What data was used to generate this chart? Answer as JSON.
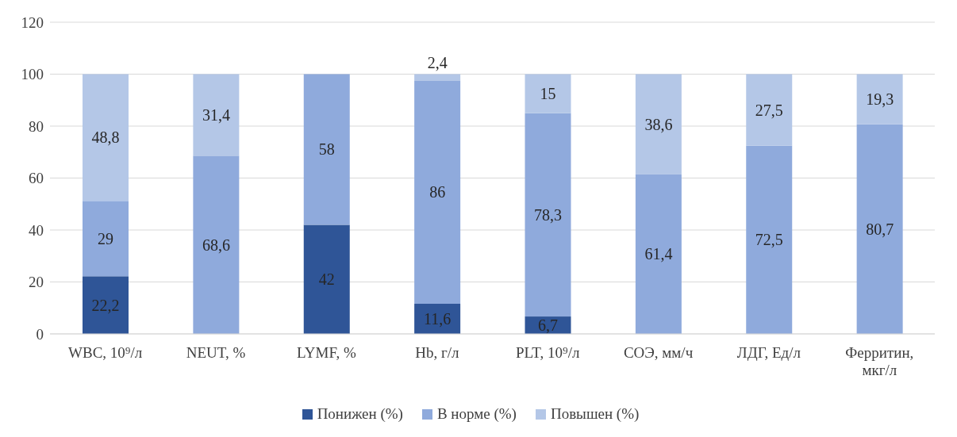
{
  "chart_data": {
    "type": "bar",
    "stacked": true,
    "categories": [
      "WBC, 10⁹/л",
      "NEUT, %",
      "LYMF, %",
      "Hb, г/л",
      "PLT, 10⁹/л",
      "СОЭ, мм/ч",
      "ЛДГ, Ед/л",
      "Ферритин, мкг/л"
    ],
    "series": [
      {
        "name": "Понижен (%)",
        "color": "#2f5597",
        "values": [
          22.2,
          null,
          42,
          11.6,
          6.7,
          null,
          null,
          null
        ],
        "value_labels": [
          "22,2",
          null,
          "42",
          "11,6",
          "6,7",
          null,
          null,
          null
        ]
      },
      {
        "name": "В норме (%)",
        "color": "#8faadc",
        "values": [
          29,
          68.6,
          58,
          86,
          78.3,
          61.4,
          72.5,
          80.7
        ],
        "value_labels": [
          "29",
          "68,6",
          "58",
          "86",
          "78,3",
          "61,4",
          "72,5",
          "80,7"
        ]
      },
      {
        "name": "Повышен (%)",
        "color": "#b4c7e7",
        "values": [
          48.8,
          31.4,
          null,
          2.4,
          15,
          38.6,
          27.5,
          19.3
        ],
        "value_labels": [
          "48,8",
          "31,4",
          null,
          "2,4",
          "15",
          "38,6",
          "27,5",
          "19,3"
        ]
      }
    ],
    "ylim": [
      0,
      120
    ],
    "yticks": [
      0,
      20,
      40,
      60,
      80,
      100,
      120
    ],
    "grid": "y",
    "legend": "bottom"
  }
}
